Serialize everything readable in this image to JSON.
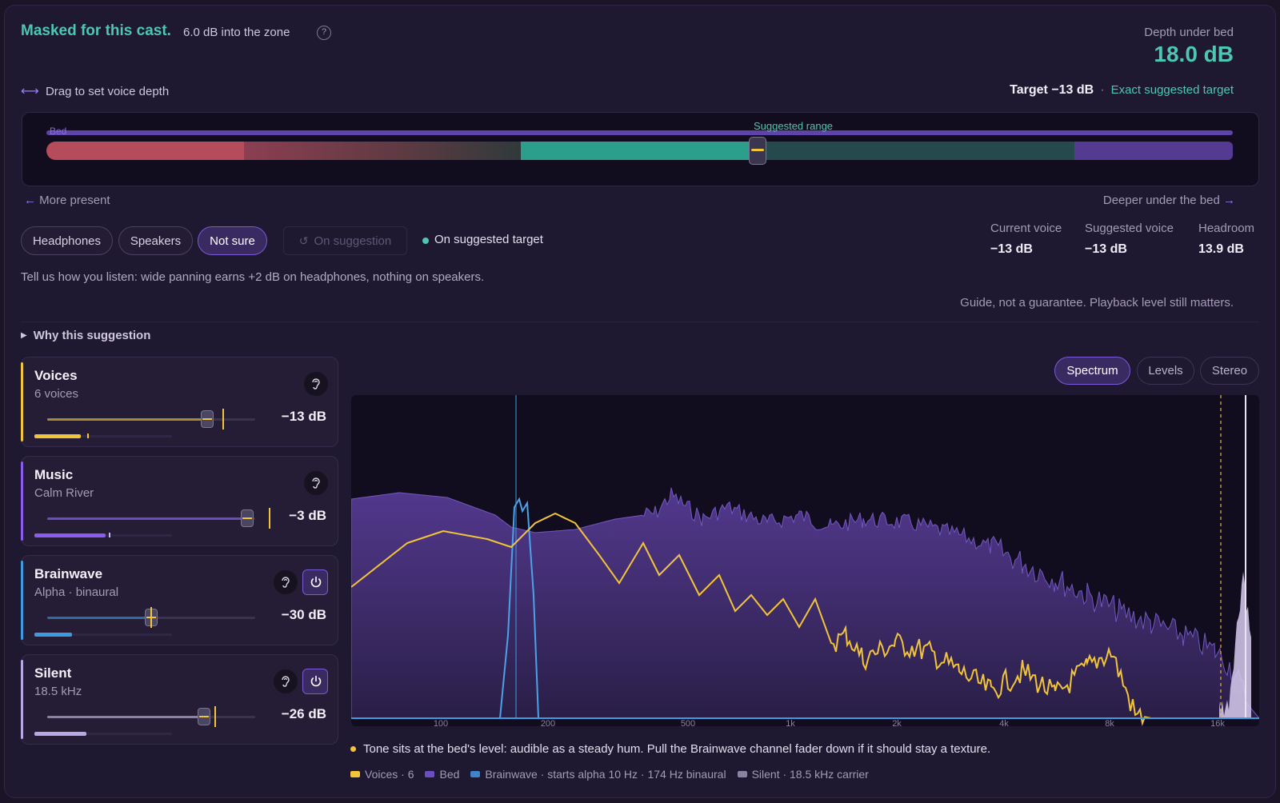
{
  "header": {
    "headline": "Masked for this cast.",
    "subline": "6.0 dB into the zone",
    "help": "?",
    "depth_label": "Depth under bed",
    "depth_value": "18.0 dB"
  },
  "depth_control": {
    "drag_hint": "Drag to set voice depth",
    "target": "Target −13 dB",
    "target_sep": "·",
    "exact_link": "Exact suggested target",
    "bed_label": "Bed",
    "suggested_label": "Suggested range",
    "left_hint": "More present",
    "right_hint": "Deeper under the bed",
    "handle_position": 0.6
  },
  "listen": {
    "options": [
      "Headphones",
      "Speakers",
      "Not sure"
    ],
    "selected": "Not sure",
    "on_suggestion": "On suggestion",
    "status": "On suggested target",
    "hint": "Tell us how you listen: wide panning earns +2 dB on headphones, nothing on speakers."
  },
  "stats": [
    {
      "label": "Current voice",
      "value": "−13 dB"
    },
    {
      "label": "Suggested voice",
      "value": "−13 dB"
    },
    {
      "label": "Headroom",
      "value": "13.9 dB"
    }
  ],
  "guide": "Guide, not a guarantee. Playback level still matters.",
  "why": "Why this suggestion",
  "channels": [
    {
      "name": "Voices",
      "sub": "6 voices",
      "db": "−13 dB",
      "color": "#f2c43a",
      "fader": 0.77,
      "meter": 0.34,
      "power": false
    },
    {
      "name": "Music",
      "sub": "Calm River",
      "db": "−3 dB",
      "color": "#8a5cf0",
      "fader": 0.96,
      "meter": 0.52,
      "power": false
    },
    {
      "name": "Brainwave",
      "sub": "Alpha · binaural",
      "db": "−30 dB",
      "color": "#3f9be0",
      "fader": 0.5,
      "meter": 0.27,
      "power": true
    },
    {
      "name": "Silent",
      "sub": "18.5 kHz",
      "db": "−26 dB",
      "color": "#b9a8e6",
      "fader": 0.74,
      "meter": 0.38,
      "power": true
    }
  ],
  "tabs": [
    "Spectrum",
    "Levels",
    "Stereo"
  ],
  "active_tab": "Spectrum",
  "spectrum_ticks": [
    "100",
    "200",
    "500",
    "1k",
    "2k",
    "4k",
    "8k",
    "16k"
  ],
  "note": "Tone sits at the bed's level: audible as a steady hum. Pull the Brainwave channel fader down if it should stay a texture.",
  "legend": [
    {
      "label": "Voices · 6",
      "color": "#f2c43a"
    },
    {
      "label": "Bed",
      "color": "#6b4fc2"
    },
    {
      "label": "Brainwave · starts alpha 10 Hz · 174 Hz binaural",
      "color": "#3f84c8"
    },
    {
      "label": "Silent · 18.5 kHz carrier",
      "color": "#8a82a0"
    }
  ],
  "colors": {
    "accent": "#4ec7b1",
    "purple": "#7a5ad8",
    "voice": "#f2c43a",
    "bed": "#6b4fc2",
    "brainwave": "#3f9be0"
  }
}
